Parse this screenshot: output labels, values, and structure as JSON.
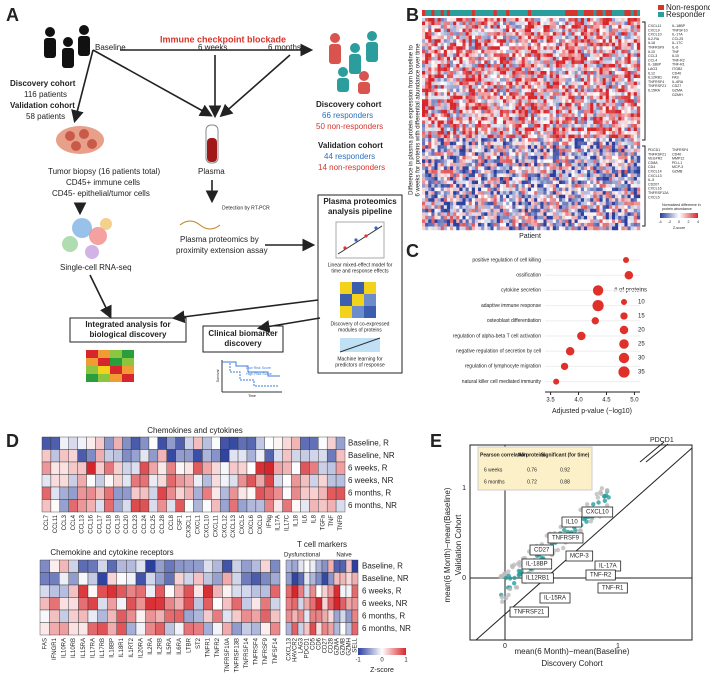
{
  "panel_a": {
    "label": "A",
    "title": "Immune checkpoint blockade",
    "timepoints": [
      "Baseline",
      "6 weeks",
      "6 months"
    ],
    "left_cohorts": [
      "Discovery cohort",
      "116 patients",
      "Validation cohort",
      "58 patients"
    ],
    "right_cohorts": [
      "Discovery cohort",
      "66 responders",
      "50 non-responders",
      "Validation cohort",
      "44 responders",
      "14 non-responders"
    ],
    "tumor": [
      "Tumor biopsy (16 patients total)",
      "CD45+ immune cells",
      "CD45- epithelial/tumor cells"
    ],
    "plasma": "Plasma",
    "detection": "Detection by RT-PCR",
    "proteomics": [
      "Plasma proteomics by",
      "proximity extension assay"
    ],
    "scrna": "Single-cell RNA-seq",
    "pipeline_title": [
      "Plasma proteomics",
      "analysis pipeline"
    ],
    "pipeline_steps": [
      "Linear mixed-effect model for",
      "time and response effects",
      "Discovery of co-expressed",
      "modules of proteins",
      "Machine learning for",
      "predictors of response"
    ],
    "integrated": [
      "Integrated analysis for",
      "biological discovery"
    ],
    "clinical": [
      "Clinical biomarker",
      "discovery"
    ],
    "km": {
      "legend": [
        "Low Risk Score",
        "High Risk Score"
      ],
      "y_label": "Survival",
      "x_label": "Time"
    }
  },
  "panel_b": {
    "label": "B",
    "legend": [
      "Non-responder",
      "Responder"
    ],
    "y_label": [
      "Difference in plasma protein expression from baseline to",
      "6 weeks for proteins with differential abundance over time"
    ],
    "x_label": "Patient",
    "genes_top_1": [
      "CXCL11",
      "CXCL9",
      "CXCL10",
      "IL2-RA",
      "IL18",
      "TNFRSF9",
      "IL10",
      "CCL3",
      "CCL4",
      "IL-18BP",
      "LAG3",
      "IL12",
      "IL12RB1",
      "TNFRSF4",
      "TNFRSF21",
      "IL15RA"
    ],
    "genes_top_2": [
      "IL-18BP",
      "TNFSF10",
      "IL-17A",
      "CCL25",
      "IL-17C",
      "IL-6",
      "TNF",
      "IL10",
      "TNF-R2",
      "TNF-R1",
      "ITGB2",
      "CD40",
      "FAS",
      "IL-6RA",
      "CD27",
      "GZMA",
      "GZMH"
    ],
    "genes_bottom_1": [
      "PDCD1",
      "TNFRSF21",
      "VEGFR2",
      "CD8A",
      "CD4",
      "CXCL14",
      "CXCL13",
      "IL-5",
      "CD207",
      "CXCL16",
      "TNFRSF12A",
      "CXCL5"
    ],
    "genes_bottom_2": [
      "TNFRSF4",
      "CD40",
      "MMP12",
      "PD-L1",
      "MCP-3",
      "GZMB"
    ],
    "colorbar_title": [
      "Normalized difference in",
      "protein abundance"
    ],
    "colorbar_ticks": [
      "-4",
      "-2",
      "0",
      "2",
      "4"
    ],
    "colorbar_label": "Z-score"
  },
  "panel_c": {
    "label": "C",
    "terms": [
      "positive regulation of cell killing",
      "ossification",
      "cytokine secretion",
      "adaptive immune response",
      "osteoblast differentiation",
      "regulation of alpha-beta T cell activation",
      "negative regulation of secretion by cell",
      "regulation of lymphocyte migration",
      "natural killer cell mediated immunity"
    ],
    "values": [
      4.85,
      4.9,
      4.35,
      4.35,
      4.3,
      4.05,
      3.85,
      3.75,
      3.6
    ],
    "sizes": [
      10,
      20,
      30,
      35,
      15,
      20,
      20,
      15,
      10
    ],
    "color": "#e0302a",
    "xlim": [
      3.4,
      5.1
    ],
    "xticks": [
      3.5,
      {
        "value": 4,
        "label": "4.0"
      },
      4.5,
      {
        "value": 5,
        "label": "5.0"
      }
    ],
    "x_label": "Adjusted p-value (−log10)",
    "size_legend_title": "# of proteins",
    "size_legend": [
      10,
      15,
      20,
      25,
      30,
      35
    ]
  },
  "panel_d": {
    "label": "D",
    "title": "Chemokines and cytokines",
    "rows": [
      "Baseline, R",
      "Baseline, NR",
      "6 weeks, R",
      "6 weeks, NR",
      "6 months, R",
      "6 months, NR"
    ],
    "columns": [
      "CCL7",
      "CCL11",
      "CCL3",
      "CCL4",
      "CCL13",
      "CCL16",
      "CCL17",
      "CCL18",
      "CCL19",
      "CCL20",
      "CCL23",
      "CCL24",
      "CCL25",
      "CCL28",
      "CCL8",
      "CSF1",
      "CX3CL1",
      "CXCL1",
      "CXCL10",
      "CXCL11",
      "CXCL12",
      "CXCL13",
      "CXCL5",
      "CXCL6",
      "CXCL9",
      "IFNg",
      "IL17A",
      "IL17C",
      "IL18",
      "IL6",
      "IL8",
      "TGFa",
      "TNF",
      "TNFB"
    ],
    "receptor_title": "Chemokine and cytokine receptors",
    "receptor_columns": [
      "FAS",
      "IFNGR1",
      "IL10RA",
      "IL10RB",
      "IL15RA",
      "IL17RA",
      "IL17RB",
      "IL18BP",
      "IL18R1",
      "IL1RT2",
      "IL20RA",
      "IL2RA",
      "IL2RB",
      "IL5RA",
      "IL6RA",
      "LTBR",
      "ST2",
      "TNFR1",
      "TNFR2",
      "TNFRSF10A",
      "TNFRSF13B",
      "TNFRSF14",
      "TNFRSF4",
      "TNFRSF9",
      "TNFSF14"
    ],
    "tcell_title": "T cell markers",
    "tcell_groups": [
      "Dysfunctional",
      "Naive"
    ],
    "tcell_columns": [
      "CXCL13",
      "HAVCR2",
      "LAG3",
      "PDCD1",
      "CD5",
      "CD6",
      "CD27",
      "CD28",
      "GZMA",
      "GZMB",
      "GZMH",
      "SELL"
    ],
    "colorbar_ticks": [
      "-1",
      "0",
      "1"
    ],
    "colorbar_label": "Z-score"
  },
  "panel_e": {
    "label": "E",
    "x_label": [
      "mean(6 Month)−mean(Baseline)",
      "Discovery Cohort"
    ],
    "y_label": [
      "mean(6 Month)−mean(Baseline)",
      "Validation Cohort"
    ],
    "x_ticks": [
      "0",
      "1"
    ],
    "y_ticks": [
      "0",
      "1"
    ],
    "pdcd1": "PDCD1",
    "table": {
      "header": [
        "Pearson correlation",
        "All proteins",
        "Significant (for time)"
      ],
      "rows": [
        [
          "6 weeks",
          "0.76",
          "0.92"
        ],
        [
          "6 months",
          "0.72",
          "0.88"
        ]
      ]
    },
    "protein_labels": [
      "CXCL10",
      "IL10",
      "TNFRSF9",
      "CD27",
      "MCP-3",
      "IL-17A",
      "IL-18BP",
      "TNF-R2",
      "IL12RB1",
      "TNF-R1",
      "IL-15RA",
      "TNFRSF21"
    ]
  }
}
